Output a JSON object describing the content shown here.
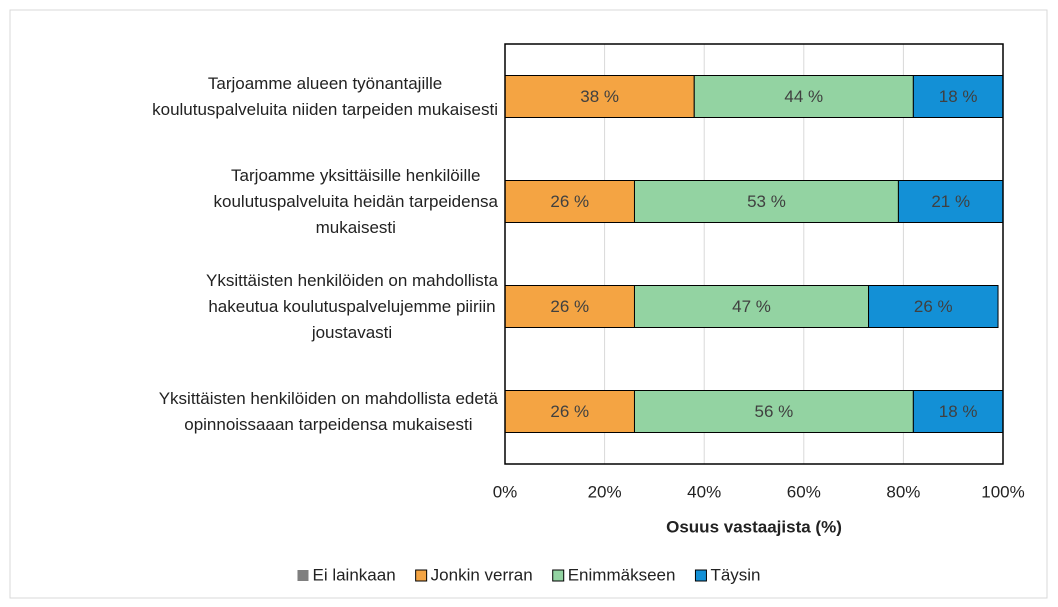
{
  "chart_data": {
    "type": "stacked-bar-horizontal",
    "categories": [
      "Tarjoamme alueen työnantajille\nkoulutuspalveluita niiden tarpeiden mukaisesti",
      "Tarjoamme yksittäisille henkilöille\nkoulutuspalveluita heidän tarpeidensa\nmukaisesti",
      "Yksittäisten henkilöiden on mahdollista\nhakeutua koulutuspalvelujemme piiriin\njoustavasti",
      "Yksittäisten henkilöiden on mahdollista edetä\nopinnoissaaan tarpeidensa mukaisesti"
    ],
    "series": [
      {
        "name": "Ei lainkaan",
        "color": "#7f7f7f",
        "values": [
          0,
          0,
          0,
          0
        ]
      },
      {
        "name": "Jonkin verran",
        "color": "#f4a443",
        "values": [
          38,
          26,
          26,
          26
        ],
        "value_labels": [
          "38 %",
          "26 %",
          "26 %",
          "26 %"
        ]
      },
      {
        "name": "Enimmäkseen",
        "color": "#93d3a2",
        "values": [
          44,
          53,
          47,
          56
        ],
        "value_labels": [
          "44 %",
          "53 %",
          "47 %",
          "56 %"
        ]
      },
      {
        "name": "Täysin",
        "color": "#1390d6",
        "values": [
          18,
          21,
          26,
          18
        ],
        "value_labels": [
          "18 %",
          "21 %",
          "26 %",
          "18 %"
        ]
      }
    ],
    "xlabel": "Osuus vastaajista (%)",
    "xlim": [
      0,
      100
    ],
    "xticks": [
      {
        "value": 0,
        "label": "0%"
      },
      {
        "value": 20,
        "label": "20%"
      },
      {
        "value": 40,
        "label": "40%"
      },
      {
        "value": 60,
        "label": "60%"
      },
      {
        "value": 80,
        "label": "80%"
      },
      {
        "value": 100,
        "label": "100%"
      }
    ],
    "grid": true,
    "legend": "bottom"
  }
}
